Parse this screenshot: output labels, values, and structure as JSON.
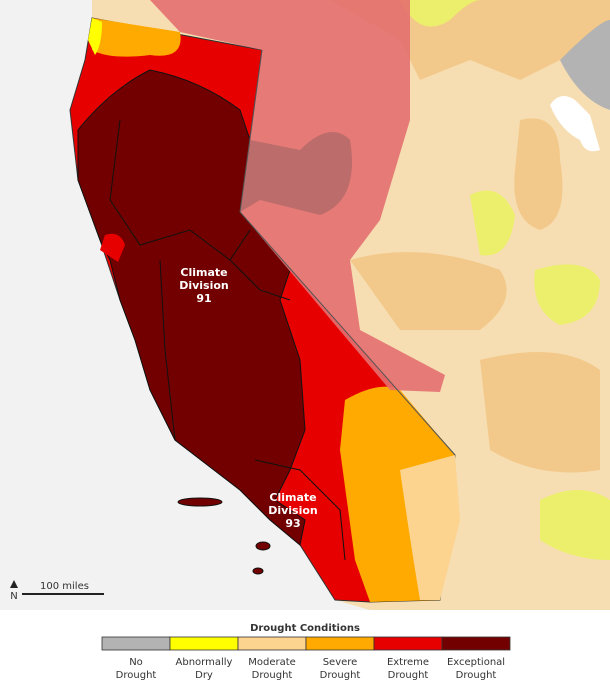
{
  "map": {
    "divisions": [
      {
        "lines": [
          "Climate",
          "Division",
          "91"
        ]
      },
      {
        "lines": [
          "Climate",
          "Division",
          "93"
        ]
      }
    ],
    "scale_bar": "100 miles",
    "north": "N"
  },
  "legend": {
    "title": "Drought Conditions",
    "items": [
      {
        "lines": [
          "No",
          "Drought"
        ],
        "color": "#b3b3b3"
      },
      {
        "lines": [
          "Abnormally",
          "Dry"
        ],
        "color": "#ffff00"
      },
      {
        "lines": [
          "Moderate",
          "Drought"
        ],
        "color": "#fcd38f"
      },
      {
        "lines": [
          "Severe",
          "Drought"
        ],
        "color": "#ffaa00"
      },
      {
        "lines": [
          "Extreme",
          "Drought"
        ],
        "color": "#e60000"
      },
      {
        "lines": [
          "Exceptional",
          "Drought"
        ],
        "color": "#730000"
      }
    ]
  }
}
